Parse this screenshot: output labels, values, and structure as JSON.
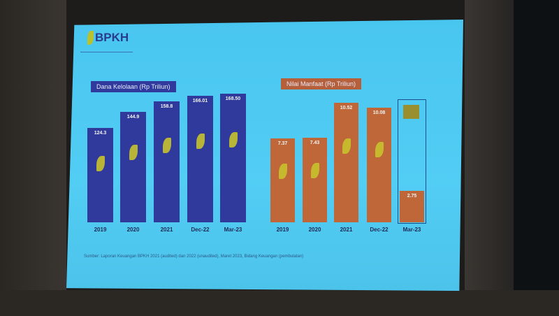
{
  "logo": {
    "text": "BPKH"
  },
  "source": "Sumber: Laporan Keuangan BPKH 2021 (audited) dan 2022 (unaudited), Maret 2023, Bidang Keuangan (pembulatan)",
  "colors": {
    "slide_bg": "#4fcaf2",
    "dana_bar": "#2f3a9c",
    "manfaat_bar": "#c0673a",
    "label_text": "#1f2a55"
  },
  "chart_data": [
    {
      "type": "bar",
      "title": "Dana Kelolaan (Rp Triliun)",
      "categories": [
        "2019",
        "2020",
        "2021",
        "Dec-22",
        "Mar-23"
      ],
      "values": [
        124.3,
        144.9,
        158.8,
        166.01,
        168.5
      ],
      "labels": [
        "124.3",
        "144.9",
        "158.8",
        "166.01",
        "168.50"
      ],
      "ylim": [
        0,
        180
      ],
      "grid": false
    },
    {
      "type": "bar",
      "title": "Nilai Manfaat (Rp Triliun)",
      "categories": [
        "2019",
        "2020",
        "2021",
        "Dec-22",
        "Mar-23"
      ],
      "values": [
        7.37,
        7.43,
        10.52,
        10.08,
        2.75
      ],
      "labels": [
        "7.37",
        "7.43",
        "10.52",
        "10.08",
        "2.75"
      ],
      "ylim": [
        0,
        11.5
      ],
      "grid": false,
      "annotations": [
        "Mar-23 bar shown inside an outlined target box"
      ]
    }
  ]
}
